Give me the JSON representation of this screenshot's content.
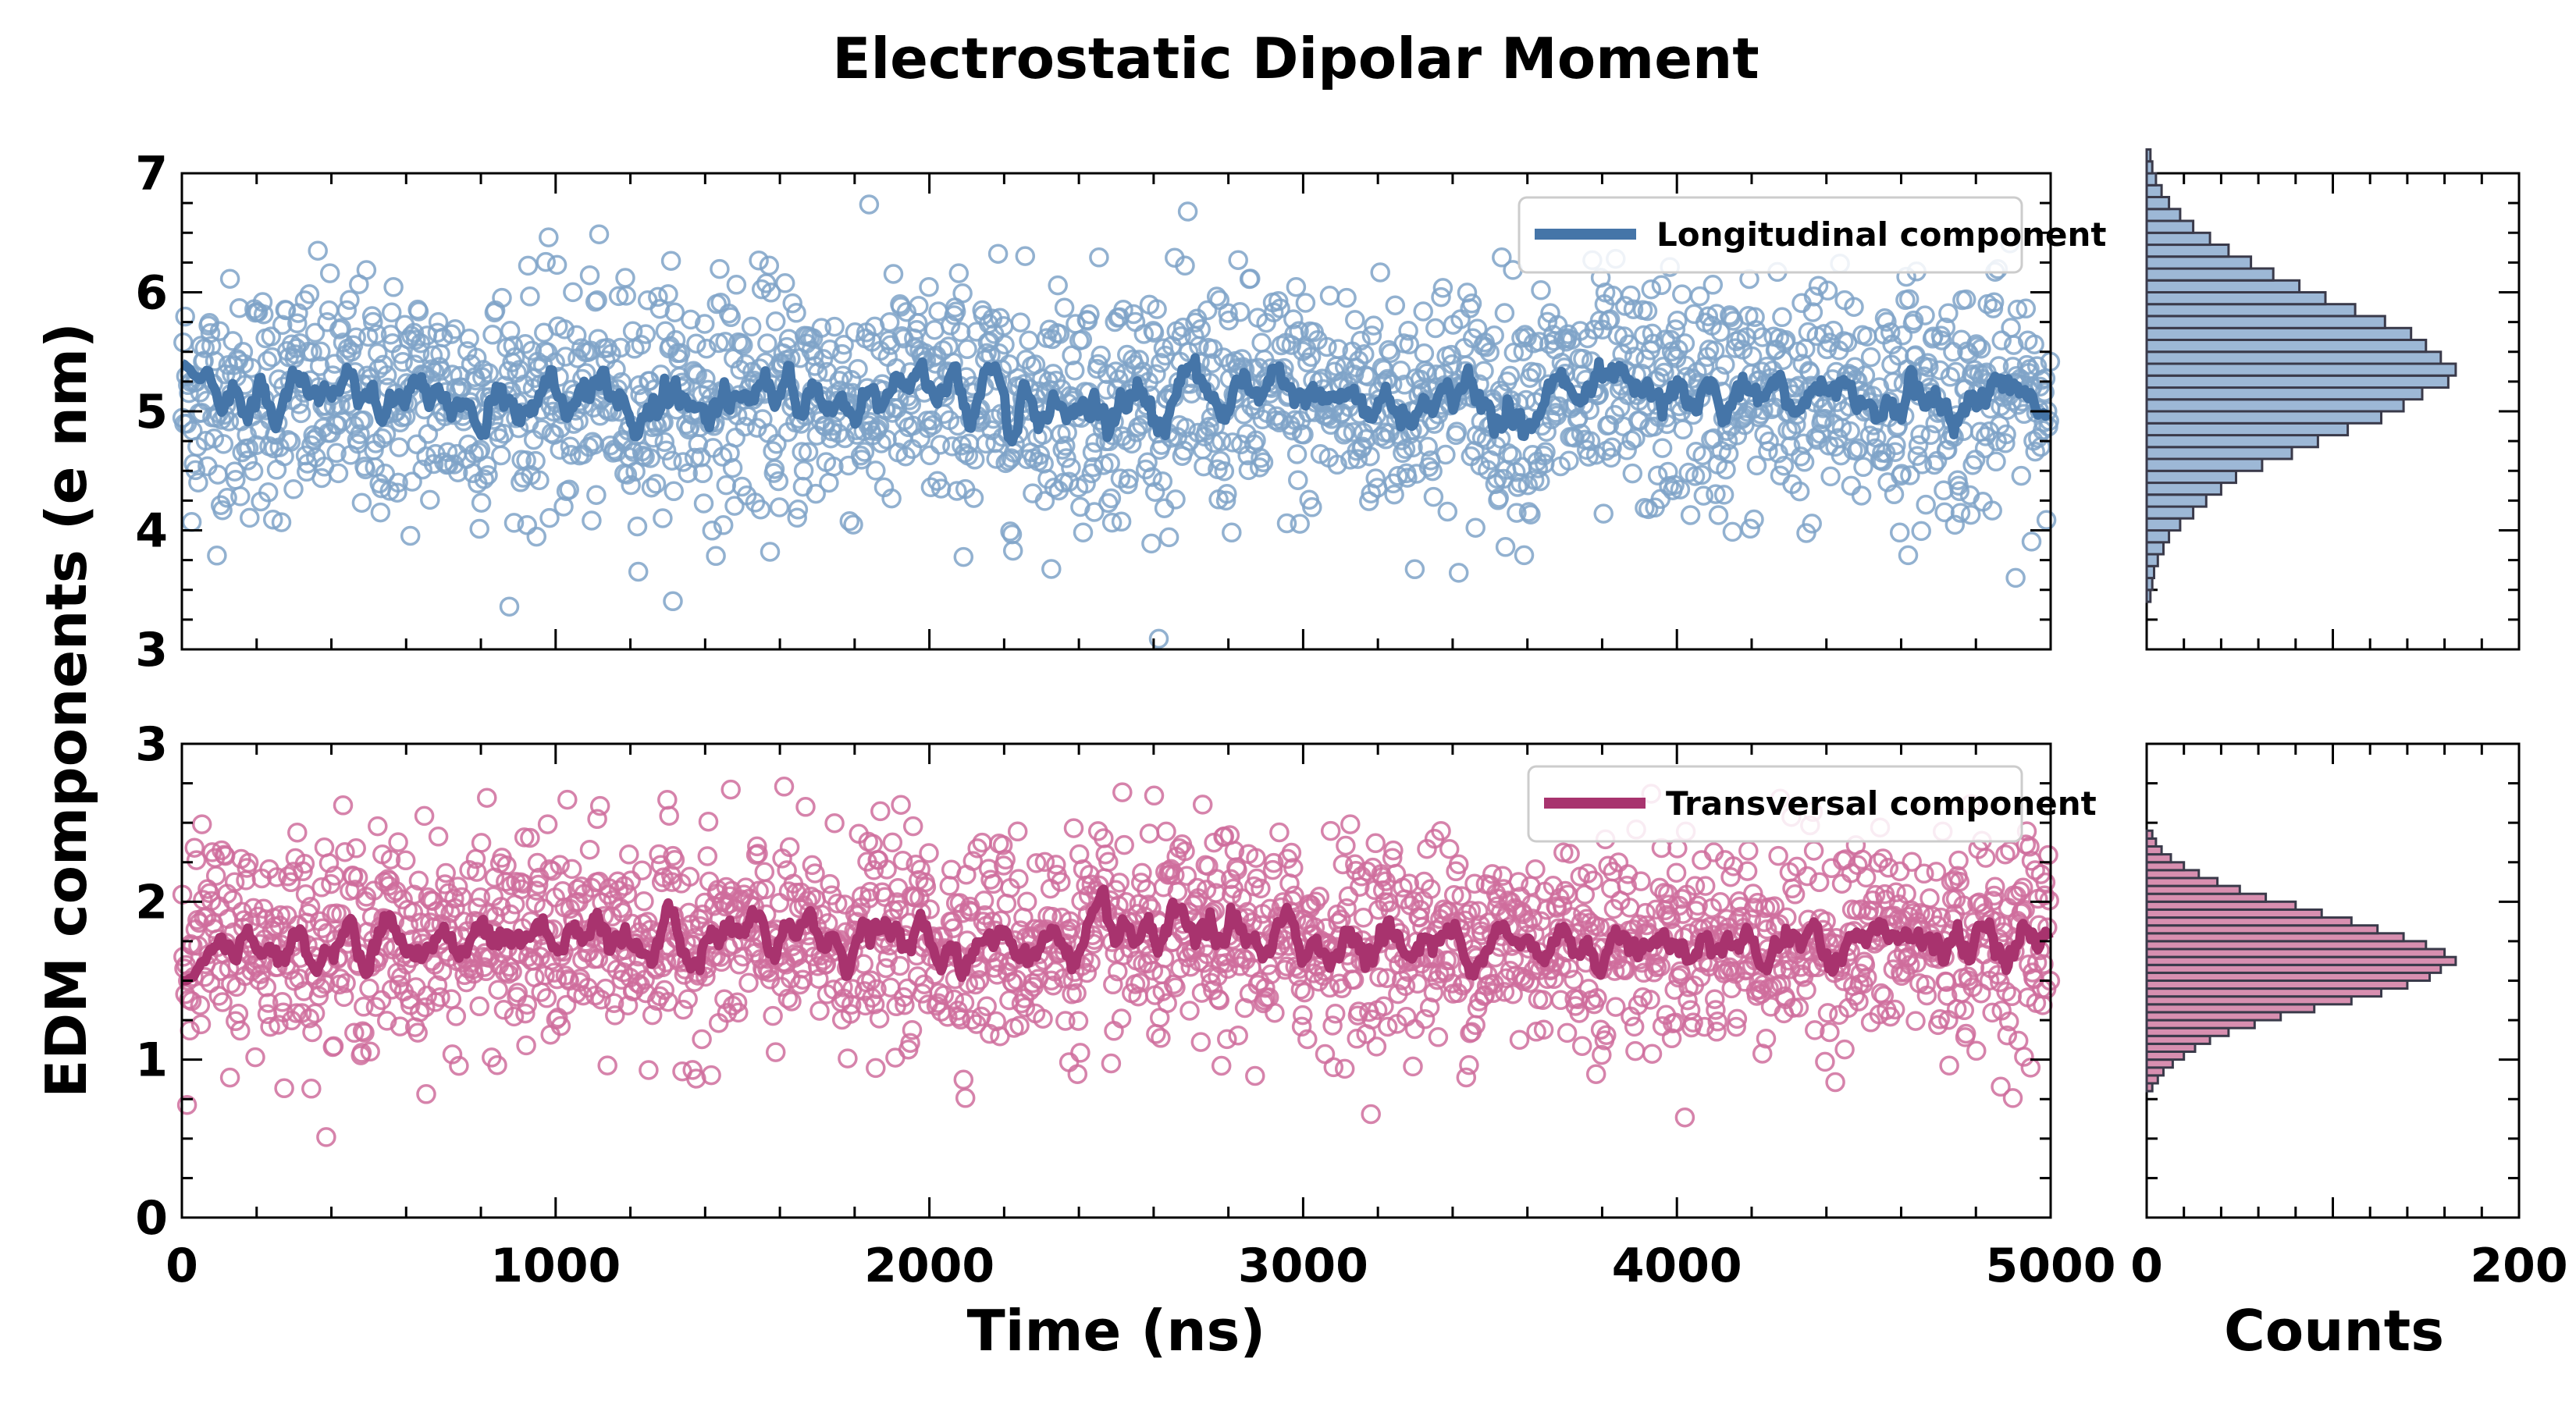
{
  "title": "Electrostatic Dipolar Moment",
  "chart_data": {
    "type": "scatter",
    "title": "Electrostatic Dipolar Moment",
    "xlabel": "Time (ns)",
    "ylabel": "EDM components (e nm)",
    "hist_xlabel": "Counts",
    "xlim": [
      0,
      5000
    ],
    "x_ticks": [
      "0",
      "1000",
      "2000",
      "3000",
      "4000",
      "5000"
    ],
    "hist_xlim": [
      0,
      200
    ],
    "hist_x_ticks": [
      "0",
      "200"
    ],
    "n_points": 2000,
    "legend_position": "upper right",
    "panels": [
      {
        "legend": "Longitudinal component",
        "color": "#4575a8",
        "scatter_color": "#7fa3c8",
        "hist_fill": "#9db8d6",
        "ylim": [
          3,
          7
        ],
        "y_ticks": [
          "3",
          "4",
          "5",
          "6",
          "7"
        ],
        "mean": 5.1,
        "std": 0.5,
        "smooth_mean_start": 5.4,
        "hist_bin_width": 0.1,
        "hist_bin_start": 3.4,
        "hist_counts": [
          2,
          3,
          4,
          6,
          9,
          12,
          18,
          25,
          32,
          40,
          48,
          62,
          78,
          92,
          108,
          126,
          138,
          148,
          162,
          166,
          158,
          150,
          142,
          128,
          112,
          96,
          82,
          68,
          56,
          44,
          34,
          25,
          18,
          12,
          8,
          5,
          3,
          2
        ]
      },
      {
        "legend": "Transversal component",
        "color": "#a8336e",
        "scatter_color": "#cf6d9c",
        "hist_fill": "#d88fb0",
        "ylim": [
          0,
          3
        ],
        "y_ticks": [
          "0",
          "1",
          "2",
          "3"
        ],
        "mean": 1.75,
        "std": 0.33,
        "smooth_mean_start": 1.5,
        "hist_bin_width": 0.05,
        "hist_bin_start": 0.8,
        "hist_counts": [
          3,
          6,
          9,
          14,
          20,
          26,
          34,
          44,
          58,
          72,
          90,
          110,
          126,
          140,
          152,
          158,
          166,
          160,
          150,
          138,
          124,
          110,
          94,
          80,
          64,
          50,
          38,
          28,
          20,
          13,
          8,
          5,
          3
        ]
      }
    ]
  }
}
